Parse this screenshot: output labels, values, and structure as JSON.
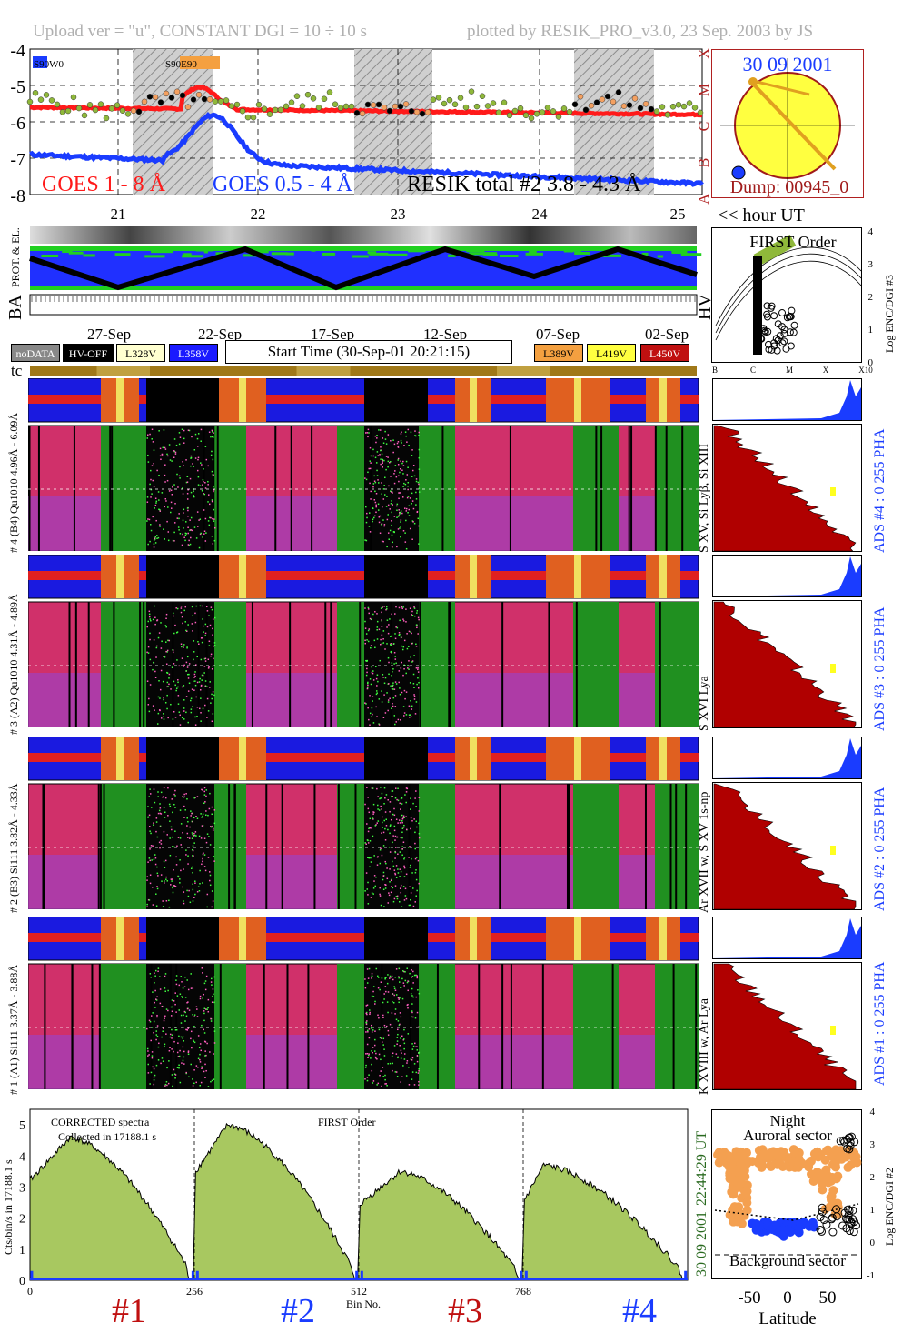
{
  "header": {
    "upload": "Upload ver = \"u\", CONSTANT  DGI =  10 ÷  10 s",
    "plotted": "plotted by RESIK_PRO_v3.0, 23 Sep. 2003 by JS"
  },
  "goes": {
    "y_ticks": [
      "-4",
      "-5",
      "-6",
      "-7",
      "-8"
    ],
    "class_labels": [
      "X",
      "M",
      "C",
      "B",
      "A"
    ],
    "legend_goes1": "GOES 1 - 8 Å",
    "legend_goes2": "GOES 0.5 - 4 Å",
    "legend_resik": "RESIK total #2  3.8 - 4.3 Å",
    "tag_left": "S90W0",
    "tag_mid": "S90E90",
    "hour_labels": [
      "21",
      "22",
      "23",
      "24",
      "25"
    ],
    "hour_axis_label": "<< hour UT",
    "colors": {
      "goes1": "#ff1a1a",
      "goes2": "#1a3cff",
      "resik_mid": "#8fb83a",
      "resik_high": "#f4a060"
    }
  },
  "sun": {
    "date": "30 09 2001",
    "dump": "Dump: 00945_0"
  },
  "status_rows": {
    "label_prot": "PROT. & EL.",
    "label_ba": "BA",
    "label_hv": "HV"
  },
  "first_order_top": {
    "title": "FIRST Order",
    "ylabel": "Log ENC/DGI #3",
    "y_ticks": [
      "4",
      "3",
      "2",
      "1",
      "0"
    ],
    "x_ticks": [
      "B",
      "C",
      "M",
      "X",
      "X10"
    ]
  },
  "timeline": {
    "dates": [
      "27-Sep",
      "22-Sep",
      "17-Sep",
      "12-Sep",
      "07-Sep",
      "02-Sep"
    ],
    "start_time": "Start Time (30-Sep-01 20:21:15)",
    "buttons": {
      "nodata": "noDATA",
      "hvoff": "HV-OFF",
      "l328": "L328V",
      "l358": "L358V",
      "l389": "L389V",
      "l419": "L419V",
      "l450": "L450V"
    },
    "tc": "tc"
  },
  "channels": [
    {
      "pha_label": "# 4 (B4) Qu1010 4.96Å - 6.09Å",
      "line_label": "S XV, Si Lyβ, Si XIII",
      "ads": "ADS #4 :   0 255   PHA"
    },
    {
      "pha_label": "# 3 (A2) Qu1010 4.31Å - 4.89Å",
      "line_label": "S XVI Lya",
      "ads": "ADS #3 :   0 255   PHA"
    },
    {
      "pha_label": "# 2 (B3) Si111 3.82Å - 4.33Å",
      "line_label": "Ar XVII w, S XV 1s-np",
      "ads": "ADS #2 :   0 255   PHA"
    },
    {
      "pha_label": "# 1 (A1) Si111 3.37Å - 3.88Å",
      "line_label": "K XVIII w, Ar Lya",
      "ads": "ADS #1 :   0 255   PHA"
    }
  ],
  "spectrum": {
    "title": "CORRECTED spectra",
    "subtitle": "Collected in 17188.1 s",
    "order": "FIRST Order",
    "ylabel": "Cts/bin/s in 17188.1 s",
    "y_ticks": [
      "5",
      "4",
      "3",
      "2",
      "1",
      "0"
    ],
    "x_ticks": [
      "0",
      "256",
      "512",
      "768"
    ],
    "x_label": "Bin No.",
    "time_right": "22:44:29 UT",
    "date_right": "30 09 2001",
    "channel_labels": [
      "#1",
      "#2",
      "#3",
      "#4"
    ],
    "fill": "#a8c860"
  },
  "latitude_panel": {
    "title_night": "Night",
    "title_auroral": "Auroral sector",
    "background": "Background sector",
    "ylabel": "Log ENC/DGI #2",
    "x_ticks": [
      "-50",
      "0",
      "50"
    ],
    "x_label": "Latitude",
    "y_ticks": [
      "4",
      "3",
      "2",
      "1",
      "0",
      "-1"
    ]
  }
}
